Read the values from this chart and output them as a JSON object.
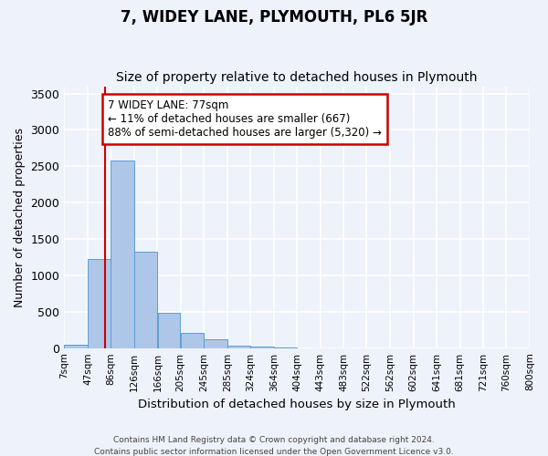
{
  "title": "7, WIDEY LANE, PLYMOUTH, PL6 5JR",
  "subtitle": "Size of property relative to detached houses in Plymouth",
  "xlabel": "Distribution of detached houses by size in Plymouth",
  "ylabel": "Number of detached properties",
  "bin_labels": [
    "7sqm",
    "47sqm",
    "86sqm",
    "126sqm",
    "166sqm",
    "205sqm",
    "245sqm",
    "285sqm",
    "324sqm",
    "364sqm",
    "404sqm",
    "443sqm",
    "483sqm",
    "522sqm",
    "562sqm",
    "602sqm",
    "641sqm",
    "681sqm",
    "721sqm",
    "760sqm",
    "800sqm"
  ],
  "bin_edges": [
    7,
    47,
    86,
    126,
    166,
    205,
    245,
    285,
    324,
    364,
    404,
    443,
    483,
    522,
    562,
    602,
    641,
    681,
    721,
    760,
    800
  ],
  "bar_heights": [
    50,
    1220,
    2580,
    1330,
    490,
    210,
    120,
    30,
    18,
    5,
    2,
    1,
    0,
    0,
    0,
    0,
    0,
    0,
    0,
    0
  ],
  "bar_color": "#aec6e8",
  "bar_edge_color": "#5a9fd4",
  "property_size": 77,
  "annotation_line1": "7 WIDEY LANE: 77sqm",
  "annotation_line2": "← 11% of detached houses are smaller (667)",
  "annotation_line3": "88% of semi-detached houses are larger (5,320) →",
  "vline_color": "#cc0000",
  "annotation_box_edge": "#cc0000",
  "ylim": [
    0,
    3600
  ],
  "yticks": [
    0,
    500,
    1000,
    1500,
    2000,
    2500,
    3000,
    3500
  ],
  "footer1": "Contains HM Land Registry data © Crown copyright and database right 2024.",
  "footer2": "Contains public sector information licensed under the Open Government Licence v3.0.",
  "bg_color": "#eef2fa",
  "grid_color": "#ffffff",
  "title_fontsize": 12,
  "subtitle_fontsize": 10
}
